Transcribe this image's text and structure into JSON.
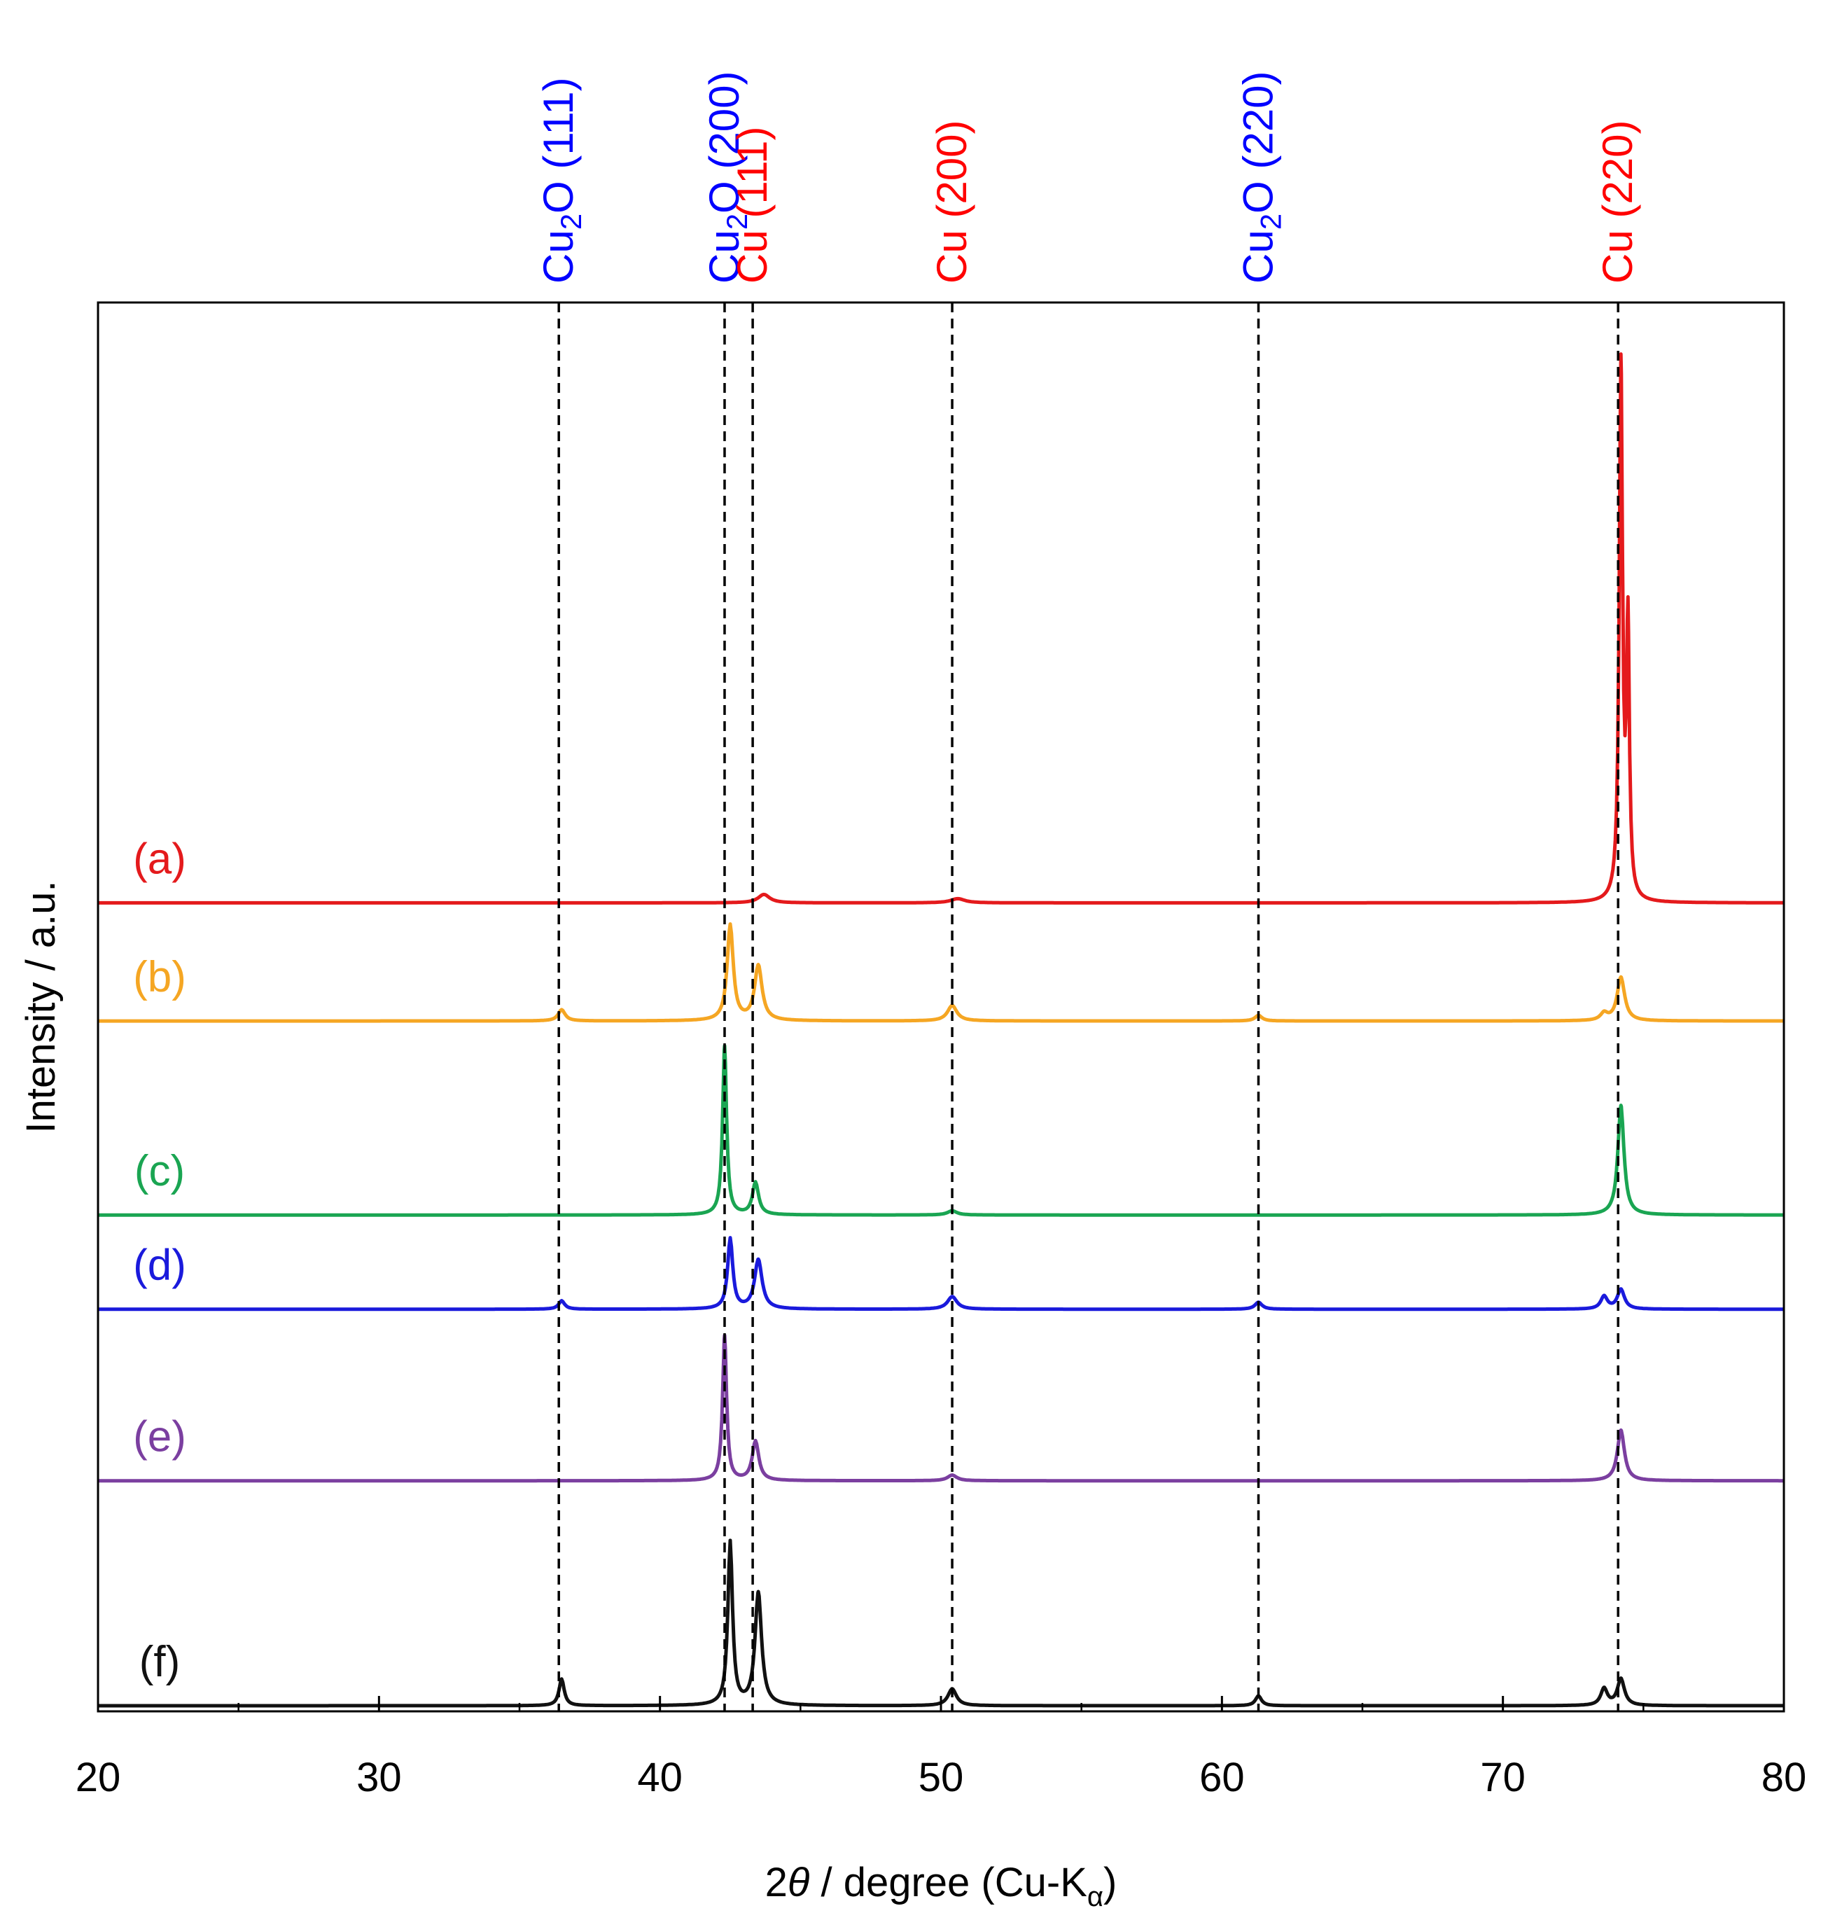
{
  "chart_data": {
    "type": "line",
    "title": "",
    "xlabel": {
      "prefix": "2",
      "theta": "θ",
      "middle": " / degree (Cu-K",
      "sub": "α",
      "suffix": ")"
    },
    "ylabel": "Intensity / a.u.",
    "xlim": [
      20,
      80
    ],
    "x_ticks": [
      20,
      30,
      40,
      50,
      60,
      70,
      80
    ],
    "ylim": [
      0,
      100
    ],
    "grid": false,
    "reference_lines": [
      {
        "x": 36.4,
        "phase": "Cu2O",
        "hkl": "(111)",
        "color": "#0000ff"
      },
      {
        "x": 42.3,
        "phase": "Cu2O",
        "hkl": "(200)",
        "color": "#0000ff"
      },
      {
        "x": 43.3,
        "phase": "Cu",
        "hkl": "(111)",
        "color": "#ff0000"
      },
      {
        "x": 50.4,
        "phase": "Cu",
        "hkl": "(200)",
        "color": "#ff0000"
      },
      {
        "x": 61.3,
        "phase": "Cu2O",
        "hkl": "(220)",
        "color": "#0000ff"
      },
      {
        "x": 74.1,
        "phase": "Cu",
        "hkl": "(220)",
        "color": "#ff0000"
      }
    ],
    "series": [
      {
        "name": "(a)",
        "color": "#e41a1c",
        "baseline": 57.3,
        "peaks": [
          {
            "center": 43.7,
            "height": 0.6,
            "width": 0.25
          },
          {
            "center": 50.6,
            "height": 0.3,
            "width": 0.3
          },
          {
            "center": 74.2,
            "height": 38.0,
            "width": 0.07
          },
          {
            "center": 74.45,
            "height": 19.0,
            "width": 0.06
          }
        ]
      },
      {
        "name": "(b)",
        "color": "#f5a623",
        "baseline": 48.9,
        "peaks": [
          {
            "center": 36.5,
            "height": 0.8,
            "width": 0.15
          },
          {
            "center": 42.5,
            "height": 6.8,
            "width": 0.13
          },
          {
            "center": 43.5,
            "height": 3.9,
            "width": 0.16
          },
          {
            "center": 50.4,
            "height": 1.1,
            "width": 0.2
          },
          {
            "center": 61.3,
            "height": 0.4,
            "width": 0.15
          },
          {
            "center": 73.6,
            "height": 0.5,
            "width": 0.15
          },
          {
            "center": 74.2,
            "height": 3.1,
            "width": 0.16
          }
        ]
      },
      {
        "name": "(c)",
        "color": "#1aa552",
        "baseline": 35.1,
        "peaks": [
          {
            "center": 42.3,
            "height": 12.0,
            "width": 0.085
          },
          {
            "center": 43.4,
            "height": 2.3,
            "width": 0.13
          },
          {
            "center": 50.4,
            "height": 0.3,
            "width": 0.2
          },
          {
            "center": 74.2,
            "height": 7.8,
            "width": 0.13
          }
        ]
      },
      {
        "name": "(d)",
        "color": "#1a1adc",
        "baseline": 28.4,
        "peaks": [
          {
            "center": 36.5,
            "height": 0.6,
            "width": 0.13
          },
          {
            "center": 42.5,
            "height": 5.0,
            "width": 0.11
          },
          {
            "center": 43.5,
            "height": 3.5,
            "width": 0.16
          },
          {
            "center": 50.4,
            "height": 0.9,
            "width": 0.2
          },
          {
            "center": 61.3,
            "height": 0.5,
            "width": 0.15
          },
          {
            "center": 73.6,
            "height": 0.9,
            "width": 0.14
          },
          {
            "center": 74.2,
            "height": 1.4,
            "width": 0.15
          }
        ]
      },
      {
        "name": "(e)",
        "color": "#7b3fa0",
        "baseline": 16.2,
        "peaks": [
          {
            "center": 42.3,
            "height": 10.3,
            "width": 0.085
          },
          {
            "center": 43.4,
            "height": 2.8,
            "width": 0.14
          },
          {
            "center": 50.4,
            "height": 0.4,
            "width": 0.2
          },
          {
            "center": 74.2,
            "height": 3.6,
            "width": 0.15
          }
        ]
      },
      {
        "name": "(f)",
        "color": "#111111",
        "baseline": 0.2,
        "peaks": [
          {
            "center": 36.5,
            "height": 1.9,
            "width": 0.11
          },
          {
            "center": 42.5,
            "height": 11.6,
            "width": 0.1
          },
          {
            "center": 43.5,
            "height": 8.0,
            "width": 0.14
          },
          {
            "center": 50.4,
            "height": 1.2,
            "width": 0.18
          },
          {
            "center": 61.3,
            "height": 0.7,
            "width": 0.13
          },
          {
            "center": 73.6,
            "height": 1.2,
            "width": 0.14
          },
          {
            "center": 74.2,
            "height": 1.9,
            "width": 0.15
          }
        ]
      }
    ]
  }
}
